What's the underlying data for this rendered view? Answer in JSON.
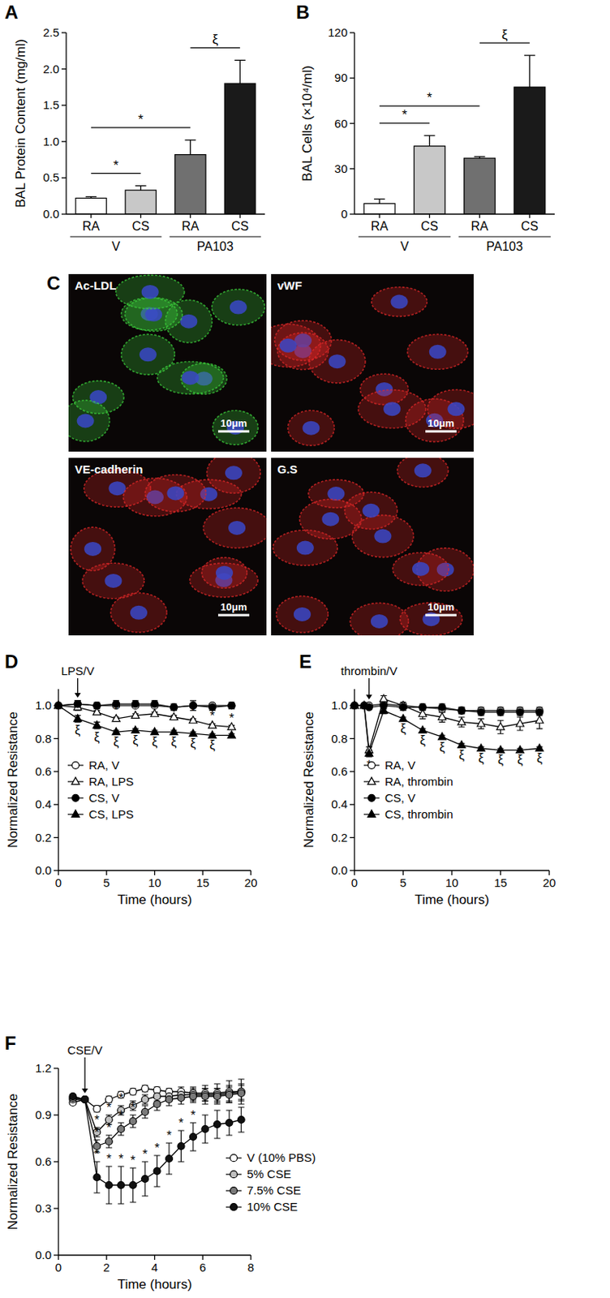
{
  "chart_data": [
    {
      "type": "bar",
      "title": "A",
      "ylabel": "BAL Protein Content (mg/ml)",
      "categories": [
        "RA",
        "CS",
        "RA",
        "CS"
      ],
      "groups": [
        {
          "label": "V",
          "categories": [
            0,
            1
          ]
        },
        {
          "label": "PA103",
          "categories": [
            2,
            3
          ]
        }
      ],
      "values": [
        0.22,
        0.33,
        0.82,
        1.8
      ],
      "errors": [
        0.02,
        0.06,
        0.2,
        0.32
      ],
      "colors": [
        "#ffffff",
        "#c8c8c8",
        "#707070",
        "#1a1a1a"
      ],
      "ylim": [
        0,
        2.5
      ],
      "yticks": [
        {
          "value": 0,
          "label": "0.0"
        },
        0.5,
        {
          "value": 1,
          "label": "1.0"
        },
        1.5,
        {
          "value": 2,
          "label": "2.0"
        },
        2.5
      ],
      "annotations": [
        {
          "text": "*",
          "from": 0,
          "to": 1
        },
        {
          "text": "*",
          "from": 0,
          "to": 2
        },
        {
          "text": "ξ",
          "from": 2,
          "to": 3
        }
      ]
    },
    {
      "type": "bar",
      "title": "B",
      "ylabel": "BAL Cells (×10⁴/ml)",
      "categories": [
        "RA",
        "CS",
        "RA",
        "CS"
      ],
      "groups": [
        {
          "label": "V",
          "categories": [
            0,
            1
          ]
        },
        {
          "label": "PA103",
          "categories": [
            2,
            3
          ]
        }
      ],
      "values": [
        7,
        45,
        37,
        84
      ],
      "errors": [
        3,
        7,
        1,
        21
      ],
      "colors": [
        "#ffffff",
        "#c8c8c8",
        "#707070",
        "#1a1a1a"
      ],
      "ylim": [
        0,
        120
      ],
      "yticks": [
        0,
        30,
        60,
        90,
        120
      ],
      "annotations": [
        {
          "text": "*",
          "from": 0,
          "to": 1
        },
        {
          "text": "*",
          "from": 0,
          "to": 2
        },
        {
          "text": "ξ",
          "from": 2,
          "to": 3
        }
      ]
    },
    {
      "type": "line",
      "title": "D",
      "xlabel": "Time (hours)",
      "ylabel": "Normalized Resistance",
      "x": [
        0,
        2,
        4,
        6,
        8,
        10,
        12,
        14,
        16,
        18
      ],
      "xlim": [
        0,
        20
      ],
      "xticks": [
        0,
        5,
        10,
        15,
        20
      ],
      "ylim": [
        0,
        1.1
      ],
      "yticks": [
        {
          "value": 0,
          "label": "0.0"
        },
        0.2,
        0.4,
        0.6,
        0.8,
        {
          "value": 1,
          "label": "1.0"
        }
      ],
      "legend": "lower left",
      "event": {
        "text": "LPS/V",
        "x": 2
      },
      "series": [
        {
          "name": "RA, V",
          "color": "#ffffff",
          "marker": "circle",
          "values": [
            1.0,
            1.01,
            1.0,
            1.0,
            1.0,
            1.0,
            0.99,
            1.0,
            1.0,
            1.0
          ],
          "errors": [
            0,
            0.02,
            0.01,
            0.01,
            0.01,
            0.01,
            0.01,
            0.01,
            0.01,
            0.01
          ]
        },
        {
          "name": "RA, LPS",
          "color": "#ffffff",
          "marker": "triangle",
          "values": [
            1.0,
            0.99,
            0.96,
            0.92,
            0.94,
            0.95,
            0.93,
            0.91,
            0.88,
            0.87
          ],
          "errors": [
            0,
            0.02,
            0.01,
            0.01,
            0.01,
            0.01,
            0.01,
            0.01,
            0.01,
            0.01
          ]
        },
        {
          "name": "CS, V",
          "color": "#000000",
          "marker": "circle",
          "values": [
            1.0,
            1.01,
            1.0,
            1.01,
            1.01,
            1.01,
            0.99,
            1.0,
            0.99,
            1.0
          ],
          "errors": [
            0,
            0.02,
            0.02,
            0.02,
            0.02,
            0.02,
            0.02,
            0.03,
            0.02,
            0.02
          ]
        },
        {
          "name": "CS, LPS",
          "color": "#000000",
          "marker": "triangle",
          "values": [
            1.0,
            0.92,
            0.88,
            0.84,
            0.85,
            0.84,
            0.84,
            0.83,
            0.82,
            0.82
          ],
          "errors": [
            0,
            0.02,
            0.02,
            0.01,
            0.01,
            0.01,
            0.01,
            0.01,
            0.01,
            0.01
          ]
        }
      ],
      "annotations": [
        {
          "text": "*",
          "x": [
            6,
            8,
            10,
            12,
            14,
            16,
            18
          ],
          "series": 1,
          "position": "above"
        },
        {
          "text": "ξ",
          "x": [
            2,
            4,
            6,
            8,
            10,
            12,
            14,
            16
          ],
          "series": 3,
          "position": "below"
        }
      ]
    },
    {
      "type": "line",
      "title": "E",
      "xlabel": "Time (hours)",
      "ylabel": "Normalized Resistance",
      "x": [
        0,
        1,
        1.5,
        3,
        5,
        7,
        9,
        11,
        13,
        15,
        17,
        19
      ],
      "xlim": [
        0,
        20
      ],
      "xticks": [
        0,
        5,
        10,
        15,
        20
      ],
      "ylim": [
        0,
        1.1
      ],
      "yticks": [
        {
          "value": 0,
          "label": "0.0"
        },
        0.2,
        0.4,
        0.6,
        0.8,
        {
          "value": 1,
          "label": "1.0"
        }
      ],
      "legend": "lower left",
      "event": {
        "text": "thrombin/V",
        "x": 1.5
      },
      "series": [
        {
          "name": "RA, V",
          "color": "#ffffff",
          "marker": "circle",
          "values": [
            1.0,
            1.0,
            1.0,
            1.01,
            1.0,
            0.99,
            0.98,
            0.97,
            0.97,
            0.97,
            0.97,
            0.97
          ],
          "errors": [
            0,
            0.01,
            0.01,
            0.01,
            0.01,
            0.01,
            0.02,
            0.02,
            0.02,
            0.02,
            0.02,
            0.02
          ]
        },
        {
          "name": "RA, thrombin",
          "color": "#ffffff",
          "marker": "triangle",
          "values": [
            1.0,
            1.0,
            0.73,
            1.04,
            1.0,
            0.95,
            0.93,
            0.9,
            0.89,
            0.87,
            0.89,
            0.91
          ],
          "errors": [
            0,
            0.01,
            0.02,
            0.02,
            0.02,
            0.03,
            0.03,
            0.03,
            0.03,
            0.04,
            0.04,
            0.05
          ]
        },
        {
          "name": "CS, V",
          "color": "#000000",
          "marker": "circle",
          "values": [
            1.0,
            1.0,
            0.99,
            1.0,
            0.99,
            0.99,
            0.99,
            0.97,
            0.96,
            0.96,
            0.96,
            0.96
          ],
          "errors": [
            0,
            0.01,
            0.01,
            0.02,
            0.02,
            0.02,
            0.02,
            0.02,
            0.02,
            0.02,
            0.02,
            0.02
          ]
        },
        {
          "name": "CS, thrombin",
          "color": "#000000",
          "marker": "triangle",
          "values": [
            1.0,
            1.0,
            0.71,
            0.97,
            0.92,
            0.85,
            0.81,
            0.76,
            0.74,
            0.73,
            0.73,
            0.74
          ],
          "errors": [
            0,
            0.01,
            0.02,
            0.02,
            0.01,
            0.01,
            0.01,
            0.01,
            0.01,
            0.01,
            0.01,
            0.01
          ]
        }
      ],
      "annotations": [
        {
          "text": "*",
          "x": [
            1.5
          ],
          "series": 3,
          "position": "below"
        },
        {
          "text": "ξ",
          "x": [
            5,
            7,
            9,
            11,
            13,
            15,
            17,
            19
          ],
          "series": 3,
          "position": "below"
        }
      ]
    },
    {
      "type": "line",
      "title": "F",
      "xlabel": "Time (hours)",
      "ylabel": "Normalized Resistance",
      "x": [
        0.6,
        1.1,
        1.6,
        2.1,
        2.6,
        3.1,
        3.6,
        4.1,
        4.6,
        5.1,
        5.6,
        6.1,
        6.6,
        7.1,
        7.6
      ],
      "xlim": [
        0,
        8
      ],
      "xticks": [
        0,
        2,
        4,
        6,
        8
      ],
      "ylim": [
        0,
        1.2
      ],
      "yticks": [
        {
          "value": 0,
          "label": "0.0"
        },
        0.3,
        0.6,
        0.9,
        1.2
      ],
      "legend": "lower right",
      "event": {
        "text": "CSE/V",
        "x": 1.1
      },
      "series": [
        {
          "name": "V (10% PBS)",
          "color": "#ffffff",
          "marker": "circle",
          "values": [
            0.98,
            1.0,
            0.94,
            1.0,
            1.03,
            1.05,
            1.07,
            1.06,
            1.05,
            1.05,
            1.04,
            1.04,
            1.04,
            1.05,
            1.05
          ],
          "errors": [
            0.01,
            0.01,
            0.02,
            0.02,
            0.02,
            0.02,
            0.02,
            0.02,
            0.02,
            0.03,
            0.04,
            0.05,
            0.06,
            0.07,
            0.08
          ]
        },
        {
          "name": "5% CSE",
          "color": "#c0c0c0",
          "marker": "circle",
          "values": [
            1.0,
            1.0,
            0.79,
            0.87,
            0.93,
            0.96,
            1.0,
            1.02,
            1.02,
            1.03,
            1.03,
            1.03,
            1.03,
            1.04,
            1.05
          ],
          "errors": [
            0.01,
            0.01,
            0.03,
            0.03,
            0.03,
            0.03,
            0.03,
            0.03,
            0.03,
            0.03,
            0.04,
            0.04,
            0.04,
            0.05,
            0.05
          ]
        },
        {
          "name": "7.5% CSE",
          "color": "#7a7a7a",
          "marker": "circle",
          "values": [
            1.01,
            1.0,
            0.7,
            0.73,
            0.81,
            0.86,
            0.92,
            0.97,
            1.0,
            1.01,
            1.02,
            1.02,
            1.02,
            1.03,
            1.04
          ],
          "errors": [
            0.01,
            0.01,
            0.04,
            0.04,
            0.04,
            0.04,
            0.04,
            0.04,
            0.04,
            0.04,
            0.04,
            0.05,
            0.05,
            0.05,
            0.05
          ]
        },
        {
          "name": "10% CSE",
          "color": "#111111",
          "marker": "circle",
          "values": [
            1.02,
            1.0,
            0.5,
            0.45,
            0.45,
            0.45,
            0.49,
            0.54,
            0.62,
            0.7,
            0.76,
            0.81,
            0.84,
            0.85,
            0.87
          ],
          "errors": [
            0.01,
            0.01,
            0.1,
            0.12,
            0.12,
            0.11,
            0.11,
            0.1,
            0.1,
            0.1,
            0.09,
            0.09,
            0.09,
            0.08,
            0.08
          ]
        }
      ],
      "annotations": [
        {
          "text": "*",
          "x": [
            1.6,
            2.1,
            2.6
          ],
          "series": 1,
          "position": "above"
        },
        {
          "text": "*",
          "x": [
            1.6,
            2.1,
            2.6,
            3.1
          ],
          "series": 2,
          "position": "above"
        },
        {
          "text": "*",
          "x": [
            1.6,
            2.1,
            2.6,
            3.1,
            3.6,
            4.1,
            4.6,
            5.1,
            5.6
          ],
          "series": 3,
          "position": "above"
        }
      ]
    }
  ],
  "micrographs": {
    "title": "C",
    "images": [
      {
        "label": "Ac-LDL",
        "scale_bar": "10μm",
        "color": "#3ccf3c"
      },
      {
        "label": "vWF",
        "scale_bar": "10μm",
        "color": "#e02828"
      },
      {
        "label": "VE-cadherin",
        "scale_bar": "10μm",
        "color": "#e02828"
      },
      {
        "label": "G.S",
        "scale_bar": "10μm",
        "color": "#e02828"
      }
    ]
  }
}
